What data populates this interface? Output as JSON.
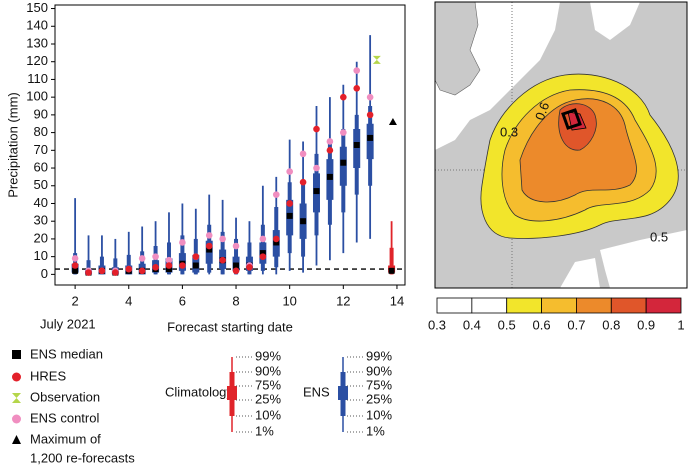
{
  "chart_data": {
    "type": "box",
    "y_label": "Precipitation (mm)",
    "x_label": "Forecast starting date",
    "x_sublabel": "July 2021",
    "xlim": [
      1.25,
      14.3
    ],
    "xticks": [
      2,
      4,
      6,
      8,
      10,
      12,
      14
    ],
    "ylim": [
      -6,
      152
    ],
    "yticks": [
      0,
      10,
      20,
      30,
      40,
      50,
      60,
      70,
      80,
      90,
      100,
      110,
      120,
      130,
      140,
      150
    ],
    "x": [
      2,
      2.5,
      3,
      3.5,
      4,
      4.5,
      5,
      5.5,
      6,
      6.5,
      7,
      7.5,
      8,
      8.5,
      9,
      9.5,
      10,
      10.5,
      11,
      11.5,
      12,
      12.5,
      13
    ],
    "ens": {
      "color": "#2b4fa3",
      "p1": [
        0,
        0,
        0,
        0,
        0,
        0,
        0,
        0,
        0,
        0,
        0,
        0,
        0,
        0,
        0,
        0,
        2,
        1,
        5,
        8,
        12,
        18,
        20
      ],
      "p10": [
        0,
        0,
        0,
        0,
        0,
        0,
        0,
        0,
        0,
        0,
        1,
        0,
        0,
        0,
        2,
        4,
        12,
        10,
        22,
        28,
        35,
        45,
        50
      ],
      "p25": [
        1,
        0,
        0,
        0,
        0,
        0,
        1,
        1,
        2,
        1,
        6,
        3,
        2,
        2,
        6,
        10,
        22,
        20,
        35,
        42,
        50,
        60,
        65
      ],
      "median": [
        2,
        1,
        2,
        1,
        2,
        2,
        3,
        3,
        6,
        5,
        14,
        8,
        5,
        5,
        12,
        18,
        33,
        30,
        47,
        55,
        63,
        73,
        77
      ],
      "p75": [
        6,
        3,
        5,
        4,
        5,
        6,
        8,
        9,
        12,
        11,
        19,
        14,
        10,
        10,
        18,
        25,
        42,
        40,
        57,
        65,
        72,
        82,
        85
      ],
      "p90": [
        12,
        8,
        10,
        9,
        11,
        13,
        16,
        18,
        22,
        20,
        28,
        24,
        20,
        18,
        28,
        38,
        52,
        52,
        68,
        75,
        82,
        90,
        95
      ],
      "p99": [
        43,
        22,
        22,
        20,
        24,
        27,
        30,
        35,
        40,
        37,
        45,
        42,
        32,
        30,
        50,
        55,
        76,
        75,
        95,
        100,
        107,
        120,
        135
      ]
    },
    "hres": {
      "color": "#e3202a",
      "values": [
        5,
        1,
        2,
        1,
        3,
        2,
        4,
        5,
        5,
        10,
        16,
        8,
        2,
        4,
        10,
        20,
        40,
        52,
        82,
        70,
        100,
        105,
        90
      ]
    },
    "control": {
      "color": "#f08ec0",
      "values": [
        9,
        2,
        2,
        2,
        3,
        9,
        10,
        8,
        18,
        10,
        22,
        20,
        16,
        5,
        20,
        45,
        58,
        68,
        60,
        75,
        80,
        115,
        100
      ]
    },
    "observation": {
      "color": "#b5d64a",
      "x": 13.25,
      "value": 121
    },
    "maximum": {
      "x": 13.85,
      "value": 86
    },
    "climatology": {
      "color": "#e0242a",
      "x": 13.8,
      "p1": 0,
      "p10": 0,
      "p25": 1,
      "median": 2,
      "p75": 5,
      "p90": 15,
      "p99": 30
    },
    "reference_line": 3,
    "legend": {
      "ens_median": "ENS median",
      "hres": "HRES",
      "observation": "Observation",
      "control": "ENS control",
      "maximum": [
        "Maximum of",
        "1,200 re-forecasts"
      ]
    },
    "percentile_key": {
      "climatology": "Climatology",
      "ens": "ENS",
      "labels": [
        "99%",
        "90%",
        "75%",
        "25%",
        "10%",
        "1%"
      ]
    }
  },
  "map": {
    "contour_labels": [
      "0.3",
      "0.6",
      "0.5"
    ],
    "colorbar": {
      "ticks": [
        0.3,
        0.4,
        0.5,
        0.6,
        0.7,
        0.8,
        0.9,
        1
      ],
      "colors": [
        "#ffffff",
        "#ffffff",
        "#f2e52b",
        "#f5bd2e",
        "#ec8a2b",
        "#e0562a",
        "#d3263b"
      ]
    }
  }
}
